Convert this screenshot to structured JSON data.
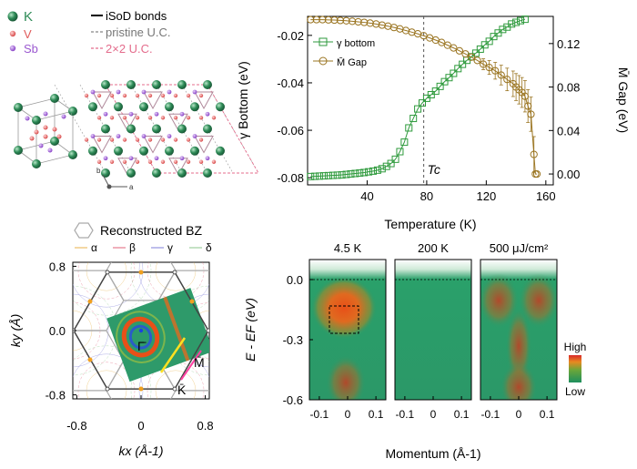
{
  "colors": {
    "gamma_bottom": "#2e9a3c",
    "m_gap": "#9a7420",
    "tc_line": "#555555",
    "k_atom": "#2e8b57",
    "v_atom": "#e05a5a",
    "sb_atom": "#9b59d0",
    "hex_bz": "#444444",
    "recon_bz": "#aaaaaa",
    "alpha": "#e8b24a",
    "beta": "#e0607a",
    "gamma": "#7c7cd8",
    "delta": "#8bc48b"
  },
  "crystal_panel": {
    "legend_atoms": [
      {
        "label": "K",
        "color": "#2e8b57"
      },
      {
        "label": "V",
        "color": "#e05a5a"
      },
      {
        "label": "Sb",
        "color": "#9b59d0"
      }
    ],
    "legend_lines": [
      {
        "label": "iSoD bonds",
        "style": "solid"
      },
      {
        "label": "pristine U.C.",
        "style": "dashed-gray"
      },
      {
        "label": "2×2 U.C.",
        "style": "dashed-pink"
      }
    ],
    "axis_labels": {
      "b": "b",
      "a": "a"
    }
  },
  "chart_data": [
    {
      "type": "line",
      "xlabel": "Temperature (K)",
      "ylabel_left": "γ Bottom (eV)",
      "ylabel_right": "M̄ Gap (eV)",
      "xlim": [
        0,
        165
      ],
      "ylim_left": [
        -0.083,
        -0.012
      ],
      "ylim_right": [
        -0.01,
        0.145
      ],
      "x_ticks": [
        40,
        80,
        120,
        160
      ],
      "y_ticks_left": [
        -0.08,
        -0.06,
        -0.04,
        -0.02
      ],
      "y_ticks_left_labels": [
        "-0.08",
        "-0.06",
        "-0.04",
        "-0.02"
      ],
      "y_ticks_right": [
        0.0,
        0.04,
        0.08,
        0.12
      ],
      "y_ticks_right_labels": [
        "0.00",
        "0.04",
        "0.08",
        "0.12"
      ],
      "tc_marker": {
        "x": 78,
        "label": "Tc"
      },
      "series": [
        {
          "name": "γ bottom",
          "axis": "left",
          "marker": "square",
          "x": [
            2,
            5,
            8,
            11,
            14,
            17,
            20,
            23,
            26,
            29,
            32,
            35,
            38,
            41,
            44,
            47,
            50,
            53,
            56,
            59,
            62,
            65,
            68,
            71,
            74,
            77,
            80,
            83,
            86,
            89,
            92,
            95,
            98,
            101,
            104,
            107,
            110,
            113,
            116,
            119,
            122,
            125,
            128,
            131,
            134,
            137,
            140,
            143,
            146
          ],
          "y": [
            -0.0795,
            -0.0794,
            -0.0793,
            -0.0792,
            -0.0791,
            -0.079,
            -0.0789,
            -0.0788,
            -0.0786,
            -0.0784,
            -0.0782,
            -0.078,
            -0.0778,
            -0.0775,
            -0.0772,
            -0.0768,
            -0.0762,
            -0.0752,
            -0.074,
            -0.0722,
            -0.069,
            -0.065,
            -0.059,
            -0.055,
            -0.051,
            -0.0485,
            -0.0465,
            -0.045,
            -0.0435,
            -0.0415,
            -0.0395,
            -0.0378,
            -0.036,
            -0.034,
            -0.0322,
            -0.0305,
            -0.029,
            -0.0275,
            -0.0258,
            -0.024,
            -0.0225,
            -0.0205,
            -0.019,
            -0.0175,
            -0.0165,
            -0.0152,
            -0.0145,
            -0.0138,
            -0.0132
          ]
        },
        {
          "name": "M̄ Gap",
          "axis": "right",
          "marker": "circle",
          "x": [
            2,
            6,
            10,
            14,
            18,
            22,
            26,
            30,
            34,
            38,
            42,
            46,
            50,
            54,
            58,
            62,
            66,
            70,
            74,
            78,
            82,
            86,
            90,
            94,
            98,
            102,
            106,
            110,
            114,
            118,
            122,
            126,
            130,
            134,
            138,
            140,
            142,
            144,
            146,
            148,
            150,
            152,
            153,
            154
          ],
          "y": [
            0.142,
            0.142,
            0.142,
            0.1418,
            0.1416,
            0.1413,
            0.141,
            0.1405,
            0.14,
            0.1395,
            0.1388,
            0.138,
            0.137,
            0.136,
            0.1348,
            0.1335,
            0.132,
            0.1305,
            0.129,
            0.1272,
            0.1252,
            0.1232,
            0.121,
            0.1185,
            0.116,
            0.1133,
            0.1105,
            0.1075,
            0.1045,
            0.101,
            0.098,
            0.095,
            0.091,
            0.087,
            0.083,
            0.08,
            0.0775,
            0.075,
            0.0715,
            0.0625,
            0.055,
            0.018,
            0.0,
            0.0
          ],
          "error_from_x": 118
        }
      ]
    },
    {
      "type": "heatmap",
      "xlabel": "kx (Å-1)",
      "ylabel": "ky (Å)",
      "xlim": [
        -0.85,
        0.85
      ],
      "ylim": [
        -0.85,
        0.85
      ],
      "x_ticks": [
        -0.8,
        0,
        0.8
      ],
      "x_tick_labels": [
        "-0.8",
        "0",
        "0.8"
      ],
      "y_ticks": [
        -0.8,
        0,
        0.8
      ],
      "y_tick_labels": [
        "-0.8",
        "0.0",
        "0.8"
      ],
      "legend": [
        "Reconstructed BZ",
        "α",
        "β",
        "γ",
        "δ"
      ],
      "point_labels": [
        "Γ̄",
        "M̄",
        "K̄"
      ]
    },
    {
      "type": "heatmap",
      "xlabel": "Momentum (Å-1)",
      "ylabel": "E - EF (eV)",
      "panel_titles": [
        "4.5 K",
        "200 K",
        "500 μJ/cm²"
      ],
      "x_ticks": [
        -0.1,
        0,
        0.1
      ],
      "x_tick_labels": [
        "-0.1",
        "0",
        "0.1"
      ],
      "ylim": [
        -0.6,
        0.1
      ],
      "y_ticks": [
        0.0,
        -0.3,
        -0.6
      ],
      "y_tick_labels": [
        "0.0",
        "-0.3",
        "-0.6"
      ],
      "colorbar": {
        "high": "High",
        "low": "Low"
      }
    }
  ]
}
